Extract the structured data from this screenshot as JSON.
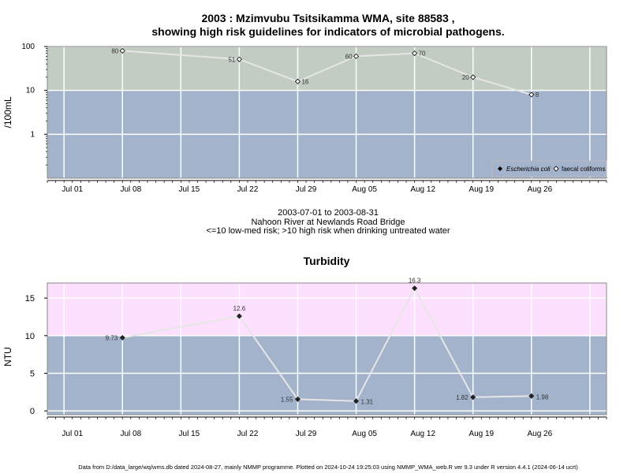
{
  "header": {
    "title_line1": "2003 : Mzimvubu Tsitsikamma WMA, site 88583 ,",
    "title_line2": "showing high risk guidelines for indicators of microbial pathogens."
  },
  "info": {
    "date_range": "2003-07-01 to 2003-08-31",
    "site_name": "Nahoon River at Newlands Road Bridge",
    "risk_note": "<=10 low-med risk; >10 high risk when drinking untreated water"
  },
  "footer": {
    "text": "Data from D:/data_large/wq/wms.db dated 2024-08-27, mainly NMMP programme. Plotted on 2024-10-24 19:25:03 using NMMP_WMA_web.R ver 9.3 under R version 4.4.1 (2024-06-14 ucrt)"
  },
  "colors": {
    "high_risk_band": "#c2ccc2",
    "low_risk_band": "#a3b3cc",
    "turbidity_high_band": "#fde0fd",
    "grid": "#ffffff",
    "series_line": "#e6e6e6"
  },
  "chart_data": [
    {
      "type": "line",
      "title": "",
      "ylabel": "/100mL",
      "y_scale": "log",
      "ylim": [
        0.1,
        100
      ],
      "y_ticks": [
        "100",
        "10",
        "1"
      ],
      "x_ticks": [
        "Jul 01",
        "Jul 08",
        "Jul 15",
        "Jul 22",
        "Jul 29",
        "Aug 05",
        "Aug 12",
        "Aug 19",
        "Aug 26"
      ],
      "x_range": [
        "2003-06-28",
        "2003-09-03"
      ],
      "threshold": 10,
      "grid": true,
      "legend_position": "bottom-right",
      "legend": [
        "Escherichia coli",
        "faecal coliforms"
      ],
      "series": [
        {
          "name": "faecal coliforms",
          "points": [
            {
              "date": "2003-07-07",
              "value": 80,
              "label": "80"
            },
            {
              "date": "2003-07-21",
              "value": 51,
              "label": "51"
            },
            {
              "date": "2003-07-28",
              "value": 16,
              "label": "16"
            },
            {
              "date": "2003-08-04",
              "value": 60,
              "label": "60"
            },
            {
              "date": "2003-08-11",
              "value": 70,
              "label": "70"
            },
            {
              "date": "2003-08-18",
              "value": 20,
              "label": "20"
            },
            {
              "date": "2003-08-25",
              "value": 8,
              "label": "8"
            }
          ]
        }
      ]
    },
    {
      "type": "line",
      "title": "Turbidity",
      "ylabel": "NTU",
      "ylim": [
        -0.5,
        17
      ],
      "y_ticks": [
        "0",
        "5",
        "10",
        "15"
      ],
      "x_ticks": [
        "Jul 01",
        "Jul 08",
        "Jul 15",
        "Jul 22",
        "Jul 29",
        "Aug 05",
        "Aug 12",
        "Aug 19",
        "Aug 26"
      ],
      "x_range": [
        "2003-06-28",
        "2003-09-03"
      ],
      "threshold": 10,
      "grid": true,
      "series": [
        {
          "points": [
            {
              "date": "2003-07-07",
              "value": 9.73,
              "label": "9.73"
            },
            {
              "date": "2003-07-21",
              "value": 12.6,
              "label": "12.6"
            },
            {
              "date": "2003-07-28",
              "value": 1.55,
              "label": "1.55"
            },
            {
              "date": "2003-08-04",
              "value": 1.31,
              "label": "1.31"
            },
            {
              "date": "2003-08-11",
              "value": 16.3,
              "label": "16.3"
            },
            {
              "date": "2003-08-18",
              "value": 1.82,
              "label": "1.82"
            },
            {
              "date": "2003-08-25",
              "value": 1.98,
              "label": "1.98"
            }
          ]
        }
      ]
    }
  ]
}
